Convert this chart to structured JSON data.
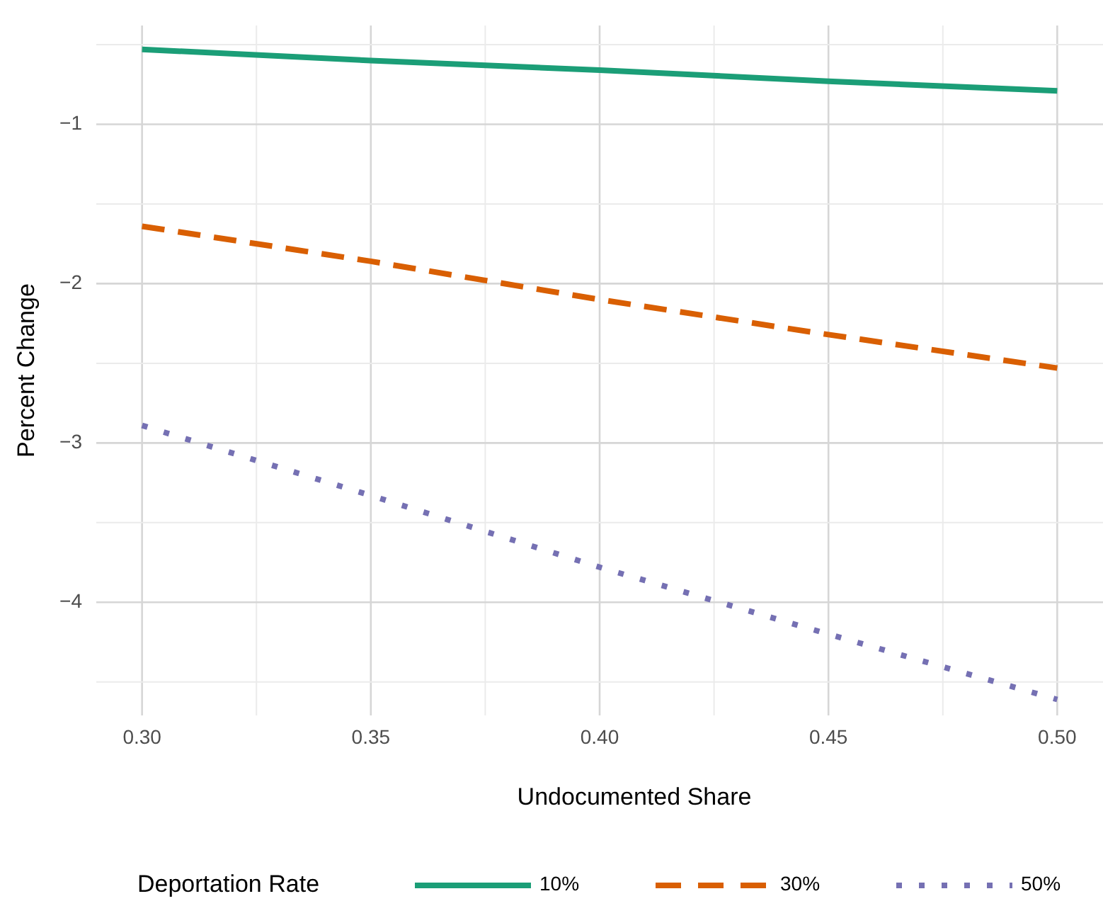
{
  "chart_data": {
    "type": "line",
    "xlabel": "Undocumented Share",
    "ylabel": "Percent Change",
    "legend_title": "Deportation Rate",
    "legend": "bottom",
    "grid": true,
    "x": [
      0.3,
      0.35,
      0.4,
      0.45,
      0.5
    ],
    "xlim": [
      0.29,
      0.51
    ],
    "ylim": [
      -4.71,
      -0.38
    ],
    "xticks": [
      {
        "value": 0.3,
        "label": "0.30"
      },
      {
        "value": 0.325,
        "label": null
      },
      {
        "value": 0.35,
        "label": "0.35"
      },
      {
        "value": 0.375,
        "label": null
      },
      {
        "value": 0.4,
        "label": "0.40"
      },
      {
        "value": 0.425,
        "label": null
      },
      {
        "value": 0.45,
        "label": "0.45"
      },
      {
        "value": 0.475,
        "label": null
      },
      {
        "value": 0.5,
        "label": "0.50"
      }
    ],
    "yticks": [
      {
        "value": -4.5,
        "label": null
      },
      {
        "value": -4,
        "label": "−4"
      },
      {
        "value": -3.5,
        "label": null
      },
      {
        "value": -3,
        "label": "−3"
      },
      {
        "value": -2.5,
        "label": null
      },
      {
        "value": -2,
        "label": "−2"
      },
      {
        "value": -1.5,
        "label": null
      },
      {
        "value": -1,
        "label": "−1"
      },
      {
        "value": -0.5,
        "label": null
      }
    ],
    "series": [
      {
        "name": "10%",
        "color": "#1b9e77",
        "line_style": "solid",
        "values": [
          -0.53,
          -0.6,
          -0.66,
          -0.73,
          -0.79
        ]
      },
      {
        "name": "30%",
        "color": "#d95f02",
        "line_style": "dashed",
        "values": [
          -1.64,
          -1.86,
          -2.1,
          -2.32,
          -2.53
        ]
      },
      {
        "name": "50%",
        "color": "#7570b3",
        "line_style": "dotted",
        "values": [
          -2.89,
          -3.33,
          -3.78,
          -4.2,
          -4.61
        ]
      }
    ]
  }
}
